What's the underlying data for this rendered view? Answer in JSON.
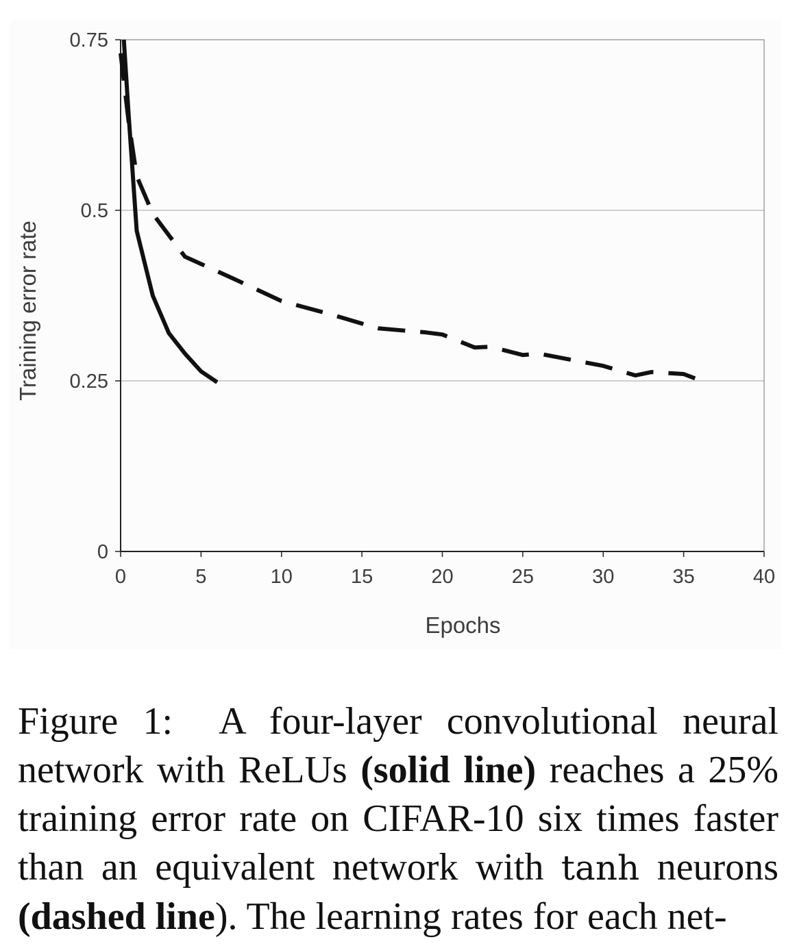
{
  "chart_data": {
    "type": "line",
    "title": "",
    "xlabel": "Epochs",
    "ylabel": "Training error rate",
    "xlim": [
      0,
      40
    ],
    "ylim": [
      0,
      0.75
    ],
    "x_ticks": [
      "0",
      "5",
      "10",
      "15",
      "20",
      "25",
      "30",
      "35",
      "40"
    ],
    "y_ticks": [
      "0",
      "0.25",
      "0.5",
      "0.75"
    ],
    "grid": "horizontal",
    "legend": "none",
    "series": [
      {
        "style": "solid",
        "color": "#111111",
        "x": [
          0.2,
          0.5,
          1,
          2,
          3,
          4,
          5,
          6
        ],
        "y": [
          0.75,
          0.64,
          0.47,
          0.375,
          0.32,
          0.29,
          0.264,
          0.248
        ]
      },
      {
        "style": "dashed",
        "color": "#111111",
        "x": [
          0,
          0.5,
          1,
          2,
          4,
          7,
          10,
          13,
          16,
          19,
          20,
          22,
          23,
          25,
          26,
          28,
          30,
          32,
          33,
          35,
          36
        ],
        "y": [
          0.73,
          0.63,
          0.55,
          0.495,
          0.432,
          0.4,
          0.367,
          0.348,
          0.327,
          0.321,
          0.318,
          0.299,
          0.3,
          0.288,
          0.29,
          0.281,
          0.272,
          0.258,
          0.263,
          0.26,
          0.251
        ]
      }
    ]
  },
  "caption": {
    "label": "Figure 1:",
    "part1": "A four-layer convolutional neural network with ReLUs",
    "solid": "(solid line)",
    "part2": "reaches a 25% training error rate on CIFAR-10 six times faster than an equivalent network with",
    "tanh": "tanh",
    "part3": "neurons",
    "dashed": "(dashed line",
    "part4": ").  The learning rates for each net-"
  }
}
